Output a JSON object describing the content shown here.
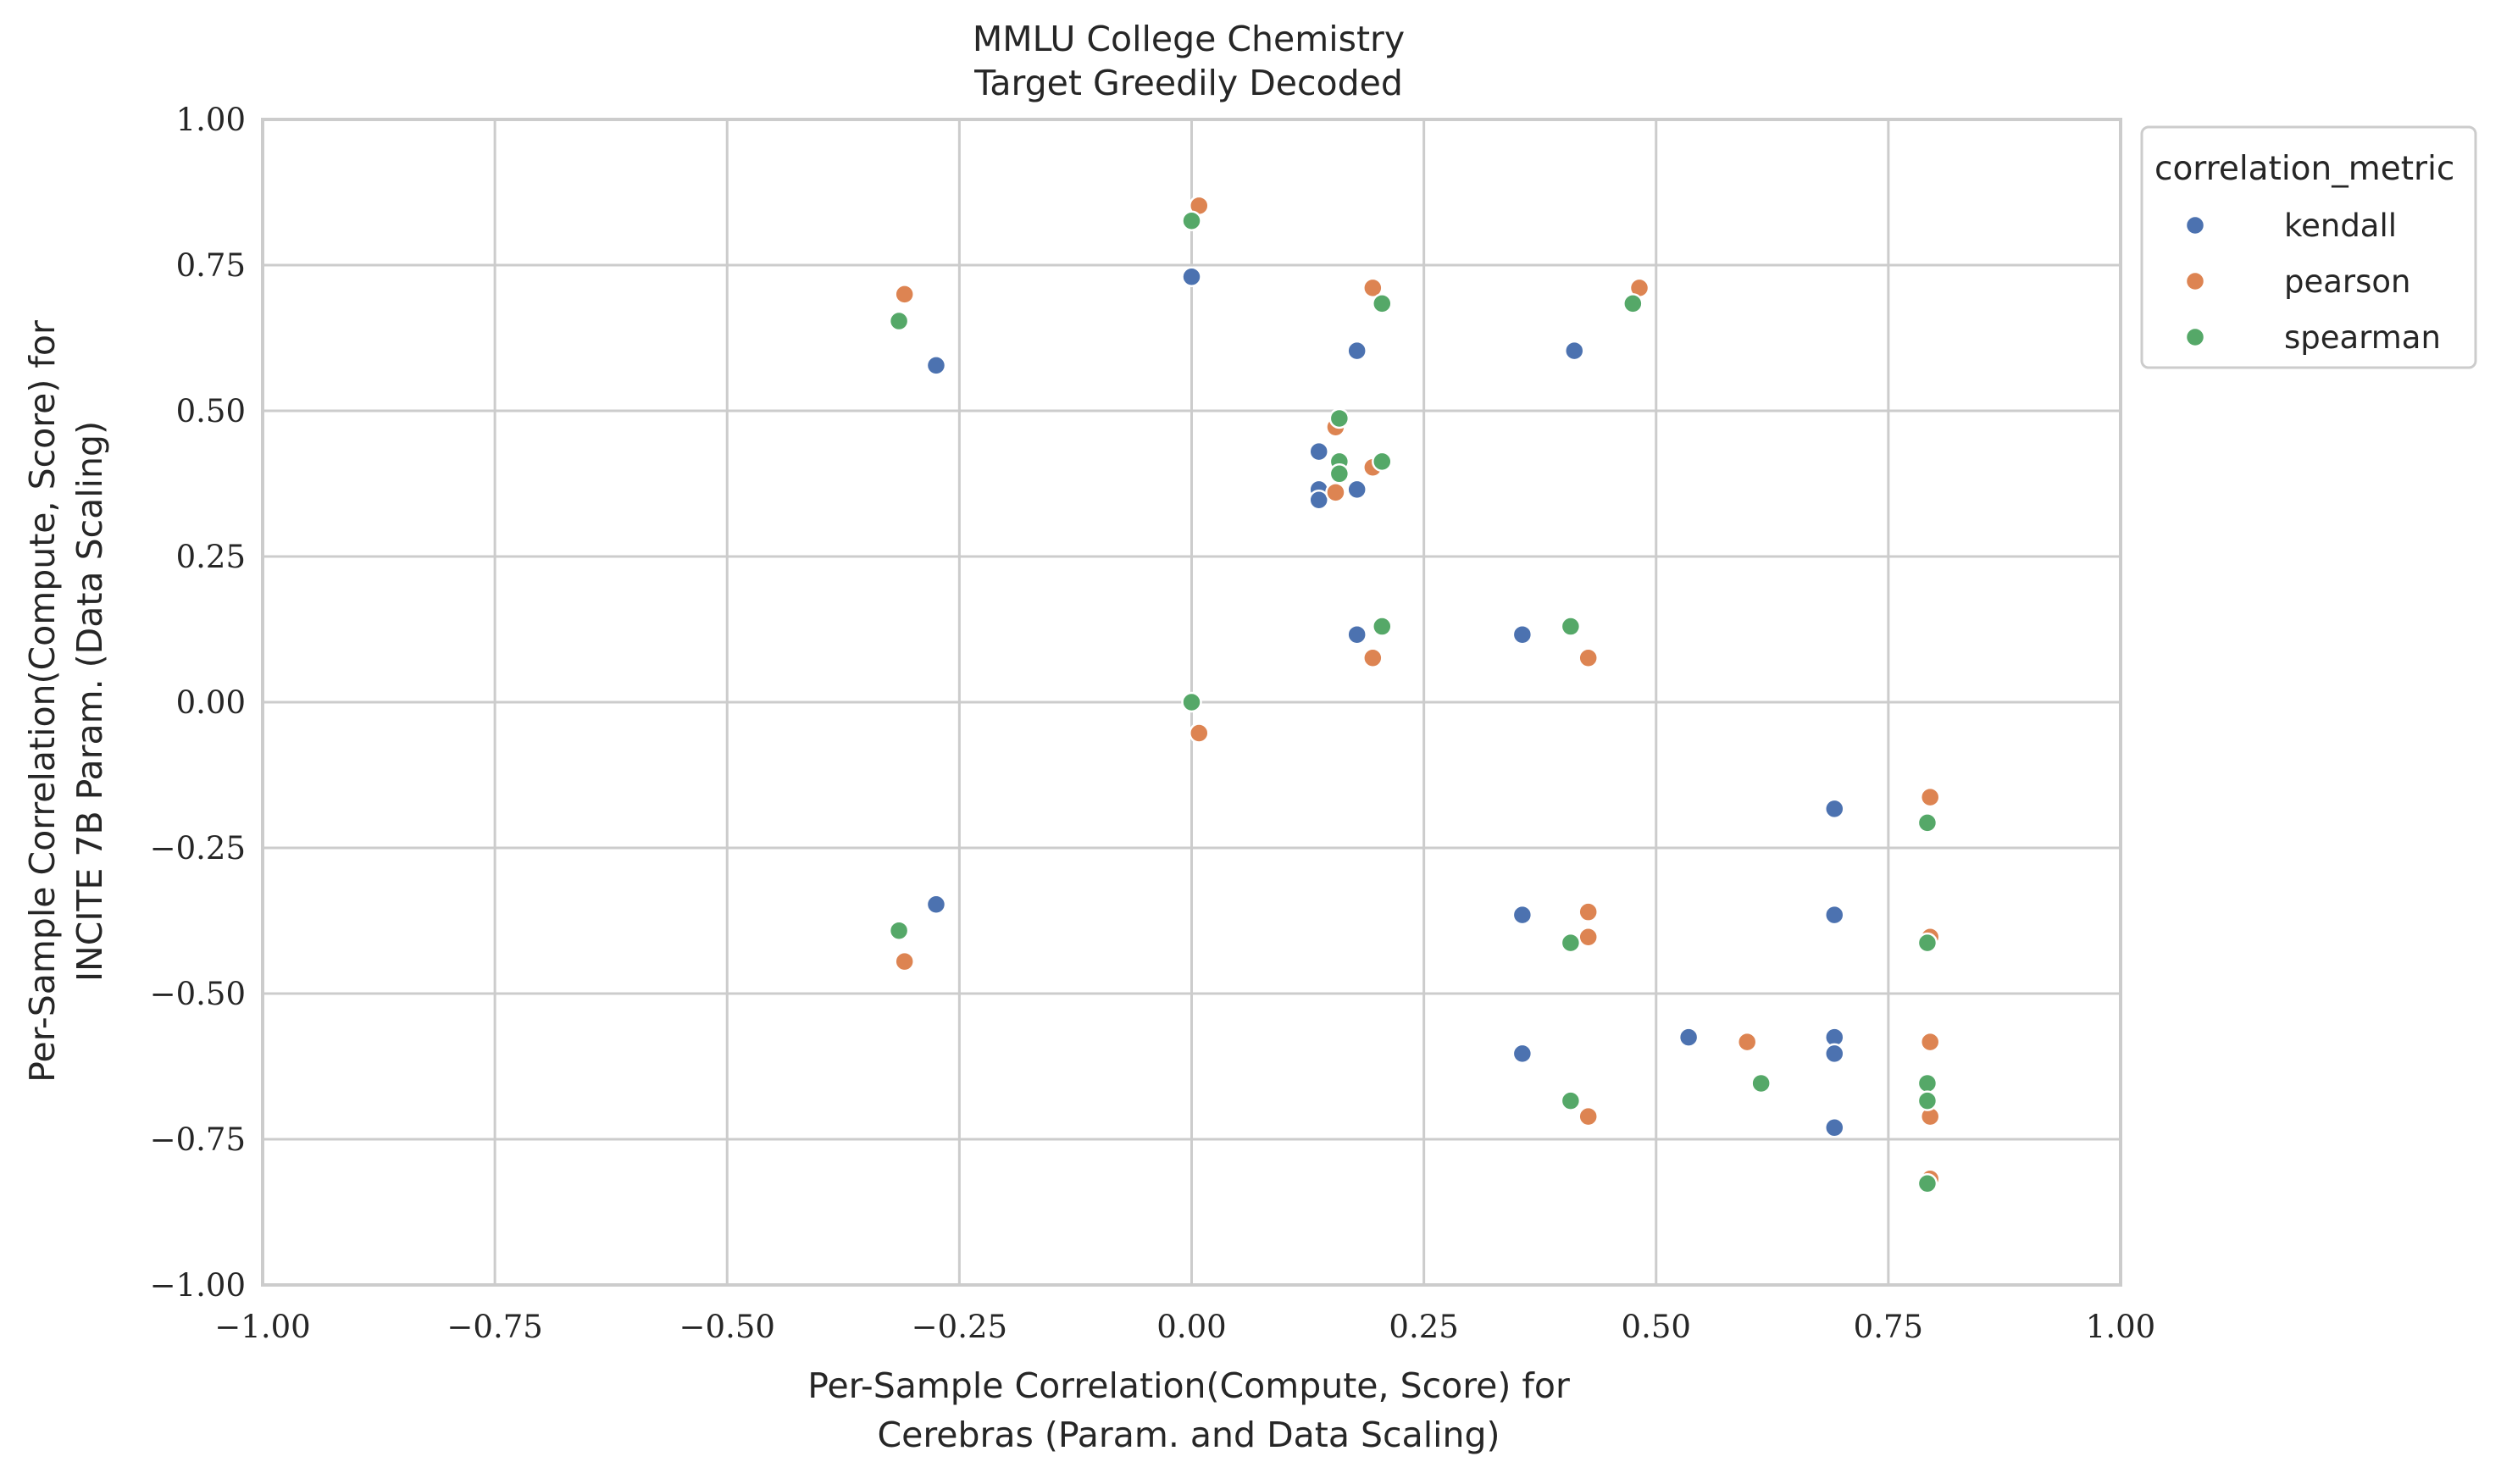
{
  "chart_data": {
    "type": "scatter",
    "title_lines": [
      "MMLU College Chemistry",
      "Target Greedily Decoded"
    ],
    "xlabel_lines": [
      "Per-Sample Correlation(Compute, Score) for",
      "Cerebras (Param. and Data Scaling)"
    ],
    "ylabel_lines": [
      "Per-Sample Correlation(Compute, Score) for",
      "INCITE 7B Param. (Data Scaling)"
    ],
    "xlim": [
      -1.0,
      1.0
    ],
    "ylim": [
      -1.0,
      1.0
    ],
    "x_ticks": [
      -1.0,
      -0.75,
      -0.5,
      -0.25,
      0.0,
      0.25,
      0.5,
      0.75,
      1.0
    ],
    "x_tick_labels": [
      "−1.00",
      "−0.75",
      "−0.50",
      "−0.25",
      "0.00",
      "0.25",
      "0.50",
      "0.75",
      "1.00"
    ],
    "y_ticks": [
      -1.0,
      -0.75,
      -0.5,
      -0.25,
      0.0,
      0.25,
      0.5,
      0.75,
      1.0
    ],
    "y_tick_labels": [
      "−1.00",
      "−0.75",
      "−0.50",
      "−0.25",
      "0.00",
      "0.25",
      "0.50",
      "0.75",
      "1.00"
    ],
    "grid": true,
    "legend": {
      "title": "correlation_metric",
      "placement": "outside-top-right"
    },
    "series": [
      {
        "name": "kendall",
        "color": "#4c72b0",
        "points": [
          [
            -0.275,
            0.578
          ],
          [
            -0.275,
            -0.347
          ],
          [
            0.0,
            0.73
          ],
          [
            0.137,
            0.43
          ],
          [
            0.137,
            0.365
          ],
          [
            0.137,
            0.347
          ],
          [
            0.178,
            0.603
          ],
          [
            0.178,
            0.365
          ],
          [
            0.178,
            0.116
          ],
          [
            0.356,
            0.116
          ],
          [
            0.356,
            -0.365
          ],
          [
            0.356,
            -0.603
          ],
          [
            0.412,
            0.603
          ],
          [
            0.535,
            -0.575
          ],
          [
            0.692,
            -0.183
          ],
          [
            0.692,
            -0.365
          ],
          [
            0.692,
            -0.575
          ],
          [
            0.692,
            -0.603
          ],
          [
            0.692,
            -0.73
          ]
        ]
      },
      {
        "name": "pearson",
        "color": "#dd8452",
        "points": [
          [
            -0.309,
            0.7
          ],
          [
            -0.309,
            -0.445
          ],
          [
            0.008,
            0.852
          ],
          [
            0.008,
            -0.053
          ],
          [
            0.155,
            0.472
          ],
          [
            0.155,
            0.36
          ],
          [
            0.195,
            0.711
          ],
          [
            0.195,
            0.403
          ],
          [
            0.195,
            0.076
          ],
          [
            0.427,
            0.076
          ],
          [
            0.427,
            -0.36
          ],
          [
            0.427,
            -0.403
          ],
          [
            0.427,
            -0.711
          ],
          [
            0.482,
            0.711
          ],
          [
            0.598,
            -0.583
          ],
          [
            0.795,
            -0.163
          ],
          [
            0.795,
            -0.403
          ],
          [
            0.795,
            -0.583
          ],
          [
            0.795,
            -0.711
          ],
          [
            0.795,
            -0.818
          ]
        ]
      },
      {
        "name": "spearman",
        "color": "#55a868",
        "points": [
          [
            -0.315,
            0.654
          ],
          [
            -0.315,
            -0.392
          ],
          [
            0.0,
            0.826
          ],
          [
            0.0,
            0.0
          ],
          [
            0.159,
            0.487
          ],
          [
            0.159,
            0.413
          ],
          [
            0.159,
            0.392
          ],
          [
            0.205,
            0.684
          ],
          [
            0.205,
            0.413
          ],
          [
            0.205,
            0.13
          ],
          [
            0.408,
            0.13
          ],
          [
            0.408,
            -0.413
          ],
          [
            0.408,
            -0.684
          ],
          [
            0.475,
            0.684
          ],
          [
            0.613,
            -0.654
          ],
          [
            0.792,
            -0.207
          ],
          [
            0.792,
            -0.413
          ],
          [
            0.792,
            -0.654
          ],
          [
            0.792,
            -0.684
          ],
          [
            0.792,
            -0.826
          ]
        ]
      }
    ]
  }
}
